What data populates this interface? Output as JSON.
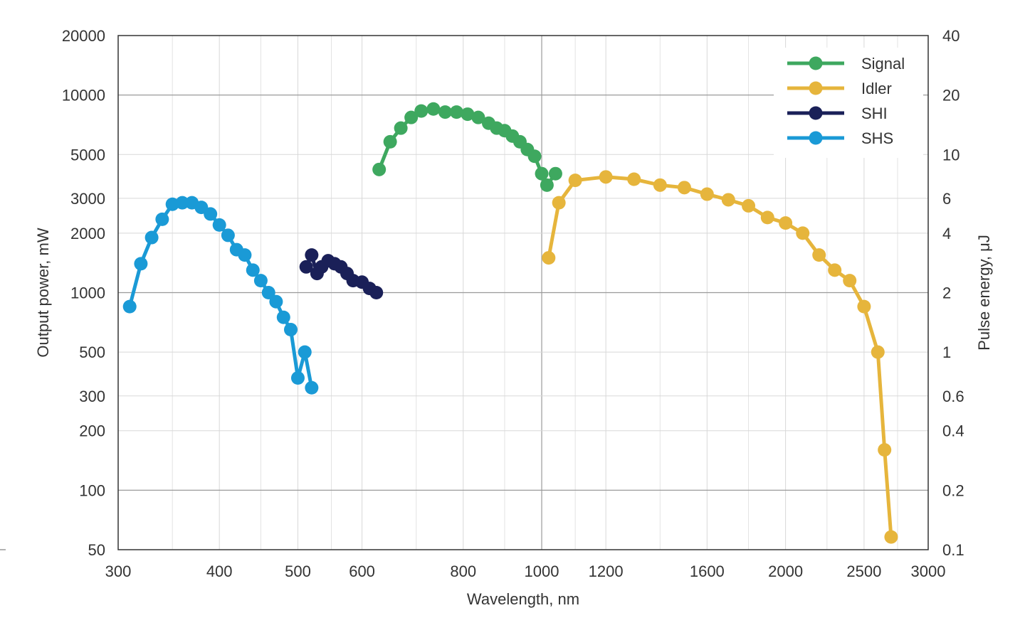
{
  "chart_data": {
    "type": "line",
    "title": "",
    "xlabel": "Wavelength, nm",
    "ylabel": "Output power, mW",
    "y2label": "Pulse energy, μJ",
    "x_scale": "log",
    "y_scale": "log",
    "xlim": [
      300,
      3000
    ],
    "ylim": [
      50,
      20000
    ],
    "y2lim": [
      0.1,
      40
    ],
    "x_ticks": [
      300,
      400,
      500,
      600,
      800,
      1000,
      1200,
      1600,
      2000,
      2500,
      3000
    ],
    "x_tick_labels": [
      "300",
      "400",
      "500",
      "600",
      "800",
      "1000",
      "1200",
      "1600",
      "2000",
      "2500",
      "3000"
    ],
    "y_ticks": [
      50,
      100,
      200,
      300,
      500,
      1000,
      2000,
      3000,
      5000,
      10000,
      20000
    ],
    "y_tick_labels": [
      "50",
      "100",
      "200",
      "300",
      "500",
      "1000",
      "2000",
      "3000",
      "5000",
      "10000",
      "20000"
    ],
    "y2_ticks": [
      0.1,
      0.2,
      0.4,
      0.6,
      1,
      2,
      4,
      6,
      10,
      20,
      40
    ],
    "y2_tick_labels": [
      "0.1",
      "0.2",
      "0.4",
      "0.6",
      "1",
      "2",
      "4",
      "6",
      "10",
      "20",
      "40"
    ],
    "grid": true,
    "legend_position": "top-right",
    "series": [
      {
        "name": "Signal",
        "color": "#3ea85f",
        "x": [
          630,
          650,
          670,
          690,
          710,
          735,
          760,
          785,
          810,
          835,
          860,
          880,
          900,
          920,
          940,
          960,
          980,
          1000,
          1015,
          1040
        ],
        "y": [
          4200,
          5800,
          6800,
          7700,
          8300,
          8500,
          8200,
          8200,
          8000,
          7700,
          7200,
          6800,
          6600,
          6200,
          5800,
          5300,
          4900,
          4000,
          3500,
          4000
        ]
      },
      {
        "name": "Idler",
        "color": "#e6b53c",
        "x": [
          1020,
          1050,
          1100,
          1200,
          1300,
          1400,
          1500,
          1600,
          1700,
          1800,
          1900,
          2000,
          2100,
          2200,
          2300,
          2400,
          2500,
          2600,
          2650,
          2700
        ],
        "y": [
          1500,
          2850,
          3700,
          3850,
          3750,
          3500,
          3400,
          3150,
          2950,
          2750,
          2400,
          2250,
          2000,
          1550,
          1300,
          1150,
          850,
          500,
          160,
          58
        ]
      },
      {
        "name": "SHI",
        "color": "#1a2058",
        "x": [
          512,
          520,
          528,
          535,
          545,
          555,
          565,
          575,
          585,
          600,
          613,
          625
        ],
        "y": [
          1350,
          1550,
          1250,
          1350,
          1450,
          1400,
          1350,
          1250,
          1150,
          1130,
          1050,
          1000
        ]
      },
      {
        "name": "SHS",
        "color": "#1a9ad6",
        "x": [
          310,
          320,
          330,
          340,
          350,
          360,
          370,
          380,
          390,
          400,
          410,
          420,
          430,
          440,
          450,
          460,
          470,
          480,
          490,
          500,
          510,
          520
        ],
        "y": [
          850,
          1400,
          1900,
          2350,
          2800,
          2850,
          2850,
          2700,
          2500,
          2200,
          1950,
          1650,
          1550,
          1300,
          1150,
          1000,
          900,
          750,
          650,
          370,
          500,
          330
        ]
      }
    ]
  }
}
